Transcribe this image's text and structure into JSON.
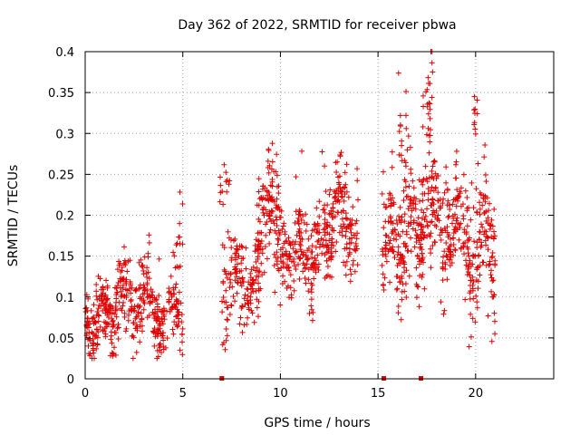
{
  "chart_data": {
    "type": "scatter",
    "title": "Day 362 of 2022, SRMTID for receiver pbwa",
    "xlabel": "GPS time / hours",
    "ylabel": "SRMTID / TECUs",
    "xlim": [
      0,
      24
    ],
    "ylim": [
      0,
      0.4
    ],
    "xticks": [
      0,
      5,
      10,
      15,
      20
    ],
    "xtick_labels": [
      "0",
      "5",
      "10",
      "15",
      "20"
    ],
    "yticks": [
      0,
      0.05,
      0.1,
      0.15,
      0.2,
      0.25,
      0.3,
      0.35,
      0.4
    ],
    "ytick_labels": [
      "0",
      "0.05",
      "0.1",
      "0.15",
      "0.2",
      "0.25",
      "0.3",
      "0.35",
      "0.4"
    ],
    "grid": true,
    "marker": "+",
    "color": "#e00000",
    "zero_markers_x": [
      7.0,
      15.3,
      17.2
    ],
    "clusters": [
      {
        "x_range": [
          0.0,
          1.5
        ],
        "y_center": 0.075,
        "y_spread": 0.03,
        "count": 150
      },
      {
        "x_range": [
          1.5,
          3.3
        ],
        "y_center": 0.095,
        "y_spread": 0.035,
        "count": 160
      },
      {
        "x_range": [
          3.3,
          5.0
        ],
        "y_center": 0.08,
        "y_spread": 0.03,
        "count": 140
      },
      {
        "x_range": [
          4.5,
          5.0
        ],
        "y_center": 0.16,
        "y_spread": 0.04,
        "count": 15
      },
      {
        "x_range": [
          7.0,
          9.0
        ],
        "y_center": 0.12,
        "y_spread": 0.04,
        "count": 150
      },
      {
        "x_range": [
          6.9,
          7.4
        ],
        "y_center": 0.21,
        "y_spread": 0.03,
        "count": 15
      },
      {
        "x_range": [
          8.8,
          10.0
        ],
        "y_center": 0.2,
        "y_spread": 0.055,
        "count": 130
      },
      {
        "x_range": [
          10.0,
          12.5
        ],
        "y_center": 0.16,
        "y_spread": 0.04,
        "count": 220
      },
      {
        "x_range": [
          12.5,
          14.0
        ],
        "y_center": 0.2,
        "y_spread": 0.045,
        "count": 140
      },
      {
        "x_range": [
          15.2,
          17.0
        ],
        "y_center": 0.17,
        "y_spread": 0.05,
        "count": 170
      },
      {
        "x_range": [
          16.0,
          16.5
        ],
        "y_center": 0.3,
        "y_spread": 0.05,
        "count": 20
      },
      {
        "x_range": [
          17.0,
          18.6
        ],
        "y_center": 0.2,
        "y_spread": 0.05,
        "count": 160
      },
      {
        "x_range": [
          17.3,
          17.8
        ],
        "y_center": 0.34,
        "y_spread": 0.05,
        "count": 25
      },
      {
        "x_range": [
          18.6,
          19.6
        ],
        "y_center": 0.18,
        "y_spread": 0.04,
        "count": 90
      },
      {
        "x_range": [
          19.6,
          21.0
        ],
        "y_center": 0.16,
        "y_spread": 0.055,
        "count": 140
      },
      {
        "x_range": [
          19.9,
          20.1
        ],
        "y_center": 0.33,
        "y_spread": 0.04,
        "count": 10
      }
    ]
  }
}
